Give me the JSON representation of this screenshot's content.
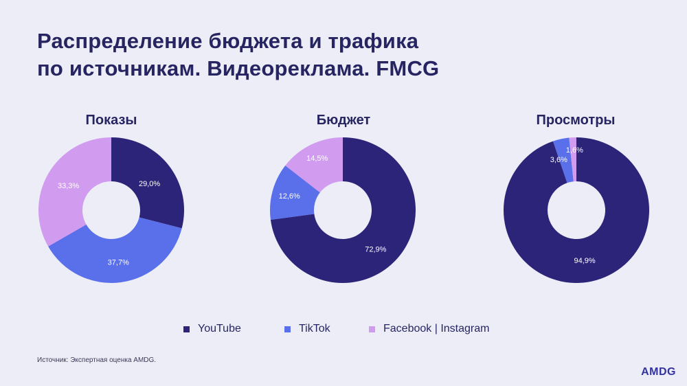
{
  "title_line1": "Распределение бюджета и трафика",
  "title_line2": "по источникам. Видеореклама. FMCG",
  "colors": {
    "youtube": "#2C2479",
    "tiktok": "#5A6FEA",
    "facebook_instagram": "#D19CF0"
  },
  "chart_data": [
    {
      "type": "pie",
      "title": "Показы",
      "categories": [
        "YouTube",
        "TikTok",
        "Facebook | Instagram"
      ],
      "values": [
        29.0,
        37.7,
        33.3
      ],
      "labels": [
        "29,0%",
        "37,7%",
        "33,3%"
      ]
    },
    {
      "type": "pie",
      "title": "Бюджет",
      "categories": [
        "YouTube",
        "TikTok",
        "Facebook | Instagram"
      ],
      "values": [
        72.9,
        12.6,
        14.5
      ],
      "labels": [
        "72,9%",
        "12,6%",
        "14,5%"
      ]
    },
    {
      "type": "pie",
      "title": "Просмотры",
      "categories": [
        "YouTube",
        "TikTok",
        "Facebook | Instagram"
      ],
      "values": [
        94.9,
        3.6,
        1.6
      ],
      "labels": [
        "94,9%",
        "3,6%",
        "1,6%"
      ]
    }
  ],
  "legend": [
    "YouTube",
    "TikTok",
    "Facebook | Instagram"
  ],
  "source": "Источник: Экспертная оценка AMDG.",
  "logo": "AMDG"
}
